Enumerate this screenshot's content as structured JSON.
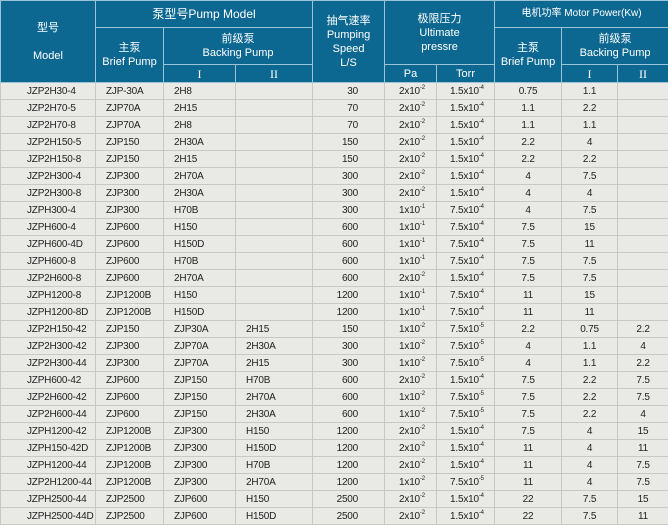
{
  "header": {
    "model_cn": "型号",
    "model_en": "Model",
    "pump_model": "泵型号Pump Model",
    "brief_cn": "主泵",
    "brief_en": "Brief Pump",
    "backing_cn": "前级泵",
    "backing_en": "Backing Pump",
    "stage1": "I",
    "stage2": "II",
    "speed_cn": "抽气速率",
    "speed_en1": "Pumping",
    "speed_en2": "Speed",
    "speed_unit": "L/S",
    "pressure_cn": "极限压力",
    "pressure_en1": "Ultimate",
    "pressure_en2": "pressre",
    "pa": "Pa",
    "torr": "Torr",
    "motor": "电机功率 Motor Power(Kw)",
    "m_brief_cn": "主泵",
    "m_brief_en": "Brief Pump",
    "m_backing_cn": "前级泵",
    "m_backing_en": "Backing Pump",
    "m_stage1": "I",
    "m_stage2": "II"
  },
  "rows": [
    [
      "JZP2H30-4",
      "ZJP-30A",
      "2H8",
      "",
      "30",
      "2x10^-2",
      "1.5x10^-4",
      "0.75",
      "1.1",
      ""
    ],
    [
      "JZP2H70-5",
      "ZJP70A",
      "2H15",
      "",
      "70",
      "2x10^-2",
      "1.5x10^-4",
      "1.1",
      "2.2",
      ""
    ],
    [
      "JZP2H70-8",
      "ZJP70A",
      "2H8",
      "",
      "70",
      "2x10^-2",
      "1.5x10^-4",
      "1.1",
      "1.1",
      ""
    ],
    [
      "JZP2H150-5",
      "ZJP150",
      "2H30A",
      "",
      "150",
      "2x10^-2",
      "1.5x10^-4",
      "2.2",
      "4",
      ""
    ],
    [
      "JZP2H150-8",
      "ZJP150",
      "2H15",
      "",
      "150",
      "2x10^-2",
      "1.5x10^-4",
      "2.2",
      "2.2",
      ""
    ],
    [
      "JZP2H300-4",
      "ZJP300",
      "2H70A",
      "",
      "300",
      "2x10^-2",
      "1.5x10^-4",
      "4",
      "7.5",
      ""
    ],
    [
      "JZP2H300-8",
      "ZJP300",
      "2H30A",
      "",
      "300",
      "2x10^-2",
      "1.5x10^-4",
      "4",
      "4",
      ""
    ],
    [
      "JZPH300-4",
      "ZJP300",
      "H70B",
      "",
      "300",
      "1x10^-1",
      "7.5x10^-4",
      "4",
      "7.5",
      ""
    ],
    [
      "JZPH600-4",
      "ZJP600",
      "H150",
      "",
      "600",
      "1x10^-1",
      "7.5x10^-4",
      "7.5",
      "15",
      ""
    ],
    [
      "JZPH600-4D",
      "ZJP600",
      "H150D",
      "",
      "600",
      "1x10^-1",
      "7.5x10^-4",
      "7.5",
      "11",
      ""
    ],
    [
      "JZPH600-8",
      "ZJP600",
      "H70B",
      "",
      "600",
      "1x10^-1",
      "7.5x10^-4",
      "7.5",
      "7.5",
      ""
    ],
    [
      "JZP2H600-8",
      "ZJP600",
      "2H70A",
      "",
      "600",
      "2x10^-2",
      "1.5x10^-4",
      "7.5",
      "7.5",
      ""
    ],
    [
      "JZPH1200-8",
      "ZJP1200B",
      "H150",
      "",
      "1200",
      "1x10^-1",
      "7.5x10^-4",
      "11",
      "15",
      ""
    ],
    [
      "JZPH1200-8D",
      "ZJP1200B",
      "H150D",
      "",
      "1200",
      "1x10^-1",
      "7.5x10^-4",
      "11",
      "11",
      ""
    ],
    [
      "JZP2H150-42",
      "ZJP150",
      "ZJP30A",
      "2H15",
      "150",
      "1x10^-2",
      "7.5x10^-5",
      "2.2",
      "0.75",
      "2.2"
    ],
    [
      "JZP2H300-42",
      "ZJP300",
      "ZJP70A",
      "2H30A",
      "300",
      "1x10^-2",
      "7.5x10^-5",
      "4",
      "1.1",
      "4"
    ],
    [
      "JZP2H300-44",
      "ZJP300",
      "ZJP70A",
      "2H15",
      "300",
      "1x10^-2",
      "7.5x10^-5",
      "4",
      "1.1",
      "2.2"
    ],
    [
      "JZPH600-42",
      "ZJP600",
      "ZJP150",
      "H70B",
      "600",
      "2x10^-2",
      "1.5x10^-4",
      "7.5",
      "2.2",
      "7.5"
    ],
    [
      "JZP2H600-42",
      "ZJP600",
      "ZJP150",
      "2H70A",
      "600",
      "1x10^-2",
      "7.5x10^-5",
      "7.5",
      "2.2",
      "7.5"
    ],
    [
      "JZP2H600-44",
      "ZJP600",
      "ZJP150",
      "2H30A",
      "600",
      "1x10^-2",
      "7.5x10^-5",
      "7.5",
      "2.2",
      "4"
    ],
    [
      "JZPH1200-42",
      "ZJP1200B",
      "ZJP300",
      "H150",
      "1200",
      "2x10^-2",
      "1.5x10^-4",
      "7.5",
      "4",
      "15"
    ],
    [
      "JZPH150-42D",
      "ZJP1200B",
      "ZJP300",
      "H150D",
      "1200",
      "2x10^-2",
      "1.5x10^-4",
      "11",
      "4",
      "11"
    ],
    [
      "JZPH1200-44",
      "ZJP1200B",
      "ZJP300",
      "H70B",
      "1200",
      "2x10^-2",
      "1.5x10^-4",
      "11",
      "4",
      "7.5"
    ],
    [
      "JZP2H1200-44",
      "ZJP1200B",
      "ZJP300",
      "2H70A",
      "1200",
      "1x10^-2",
      "7.5x10^-5",
      "11",
      "4",
      "7.5"
    ],
    [
      "JZPH2500-44",
      "ZJP2500",
      "ZJP600",
      "H150",
      "2500",
      "2x10^-2",
      "1.5x10^-4",
      "22",
      "7.5",
      "15"
    ],
    [
      "JZPH2500-44D",
      "ZJP2500",
      "ZJP600",
      "H150D",
      "2500",
      "2x10^-2",
      "1.5x10^-4",
      "22",
      "7.5",
      "11"
    ]
  ]
}
